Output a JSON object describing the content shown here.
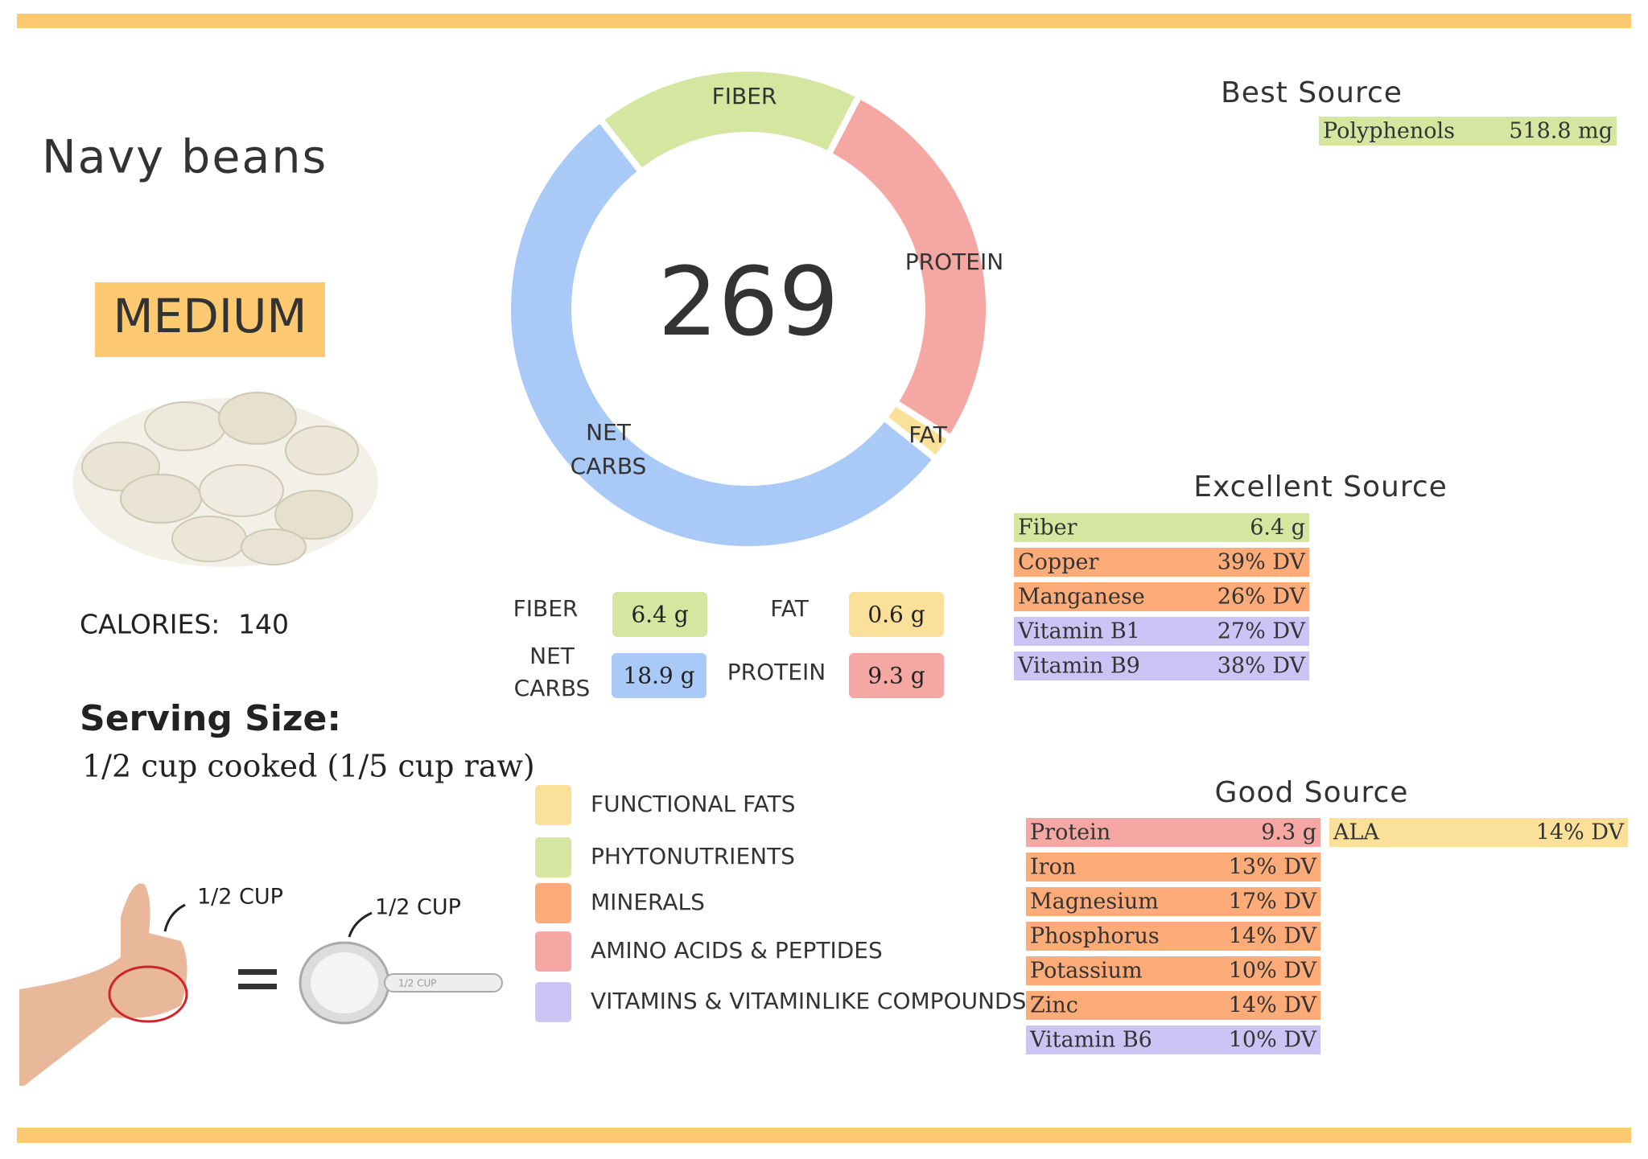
{
  "header": {
    "title": "Navy beans",
    "level": "MEDIUM"
  },
  "calories": {
    "label": "CALORIES:",
    "value": 140
  },
  "serving": {
    "label": "Serving Size:",
    "text": "1/2 cup cooked (1/5 cup raw)",
    "hand_label": "1/2 CUP",
    "cup_label": "1/2 CUP",
    "cup_handle_label": "1/2 CUP"
  },
  "chart_data": {
    "type": "donut",
    "total": 269,
    "categories": [
      "FIBER",
      "PROTEIN",
      "FAT",
      "NET CARBS"
    ],
    "values": [
      6.4,
      9.3,
      0.6,
      18.9
    ],
    "value_labels": [
      "6.4 g",
      "9.3 g",
      "0.6 g",
      "18.9 g"
    ],
    "colors": [
      "#d5e6a0",
      "#f4a7a3",
      "#fbe09a",
      "#a9c9f7"
    ]
  },
  "legend": [
    {
      "label": "FUNCTIONAL FATS",
      "color": "#fbe09a"
    },
    {
      "label": "PHYTONUTRIENTS",
      "color": "#d5e6a0"
    },
    {
      "label": "MINERALS",
      "color": "#fdab78"
    },
    {
      "label": "AMINO ACIDS & PEPTIDES",
      "color": "#f4a7a3"
    },
    {
      "label": "VITAMINS & VITAMINLIKE COMPOUNDS",
      "color": "#cdc4f6"
    }
  ],
  "best_source": {
    "title": "Best Source",
    "rows": [
      {
        "name": "Polyphenols",
        "amount": "518.8 mg",
        "color": "#d5e6a0"
      }
    ]
  },
  "excellent_source": {
    "title": "Excellent Source",
    "rows": [
      {
        "name": "Fiber",
        "amount": "6.4 g",
        "color": "#d5e6a0"
      },
      {
        "name": "Copper",
        "amount": "39% DV",
        "color": "#fdab78"
      },
      {
        "name": "Manganese",
        "amount": "26% DV",
        "color": "#fdab78"
      },
      {
        "name": "Vitamin B1",
        "amount": "27% DV",
        "color": "#cdc4f6"
      },
      {
        "name": "Vitamin B9",
        "amount": "38% DV",
        "color": "#cdc4f6"
      }
    ]
  },
  "good_source": {
    "title": "Good Source",
    "rows": [
      {
        "name": "Protein",
        "amount": "9.3 g",
        "color": "#f4a7a3"
      },
      {
        "name": "Iron",
        "amount": "13% DV",
        "color": "#fdab78"
      },
      {
        "name": "Magnesium",
        "amount": "17% DV",
        "color": "#fdab78"
      },
      {
        "name": "Phosphorus",
        "amount": "14% DV",
        "color": "#fdab78"
      },
      {
        "name": "Potassium",
        "amount": "10% DV",
        "color": "#fdab78"
      },
      {
        "name": "Zinc",
        "amount": "14% DV",
        "color": "#fdab78"
      },
      {
        "name": "Vitamin B6",
        "amount": "10% DV",
        "color": "#cdc4f6"
      }
    ],
    "side_rows": [
      {
        "name": "ALA",
        "amount": "14% DV",
        "color": "#fbe09a"
      }
    ]
  }
}
